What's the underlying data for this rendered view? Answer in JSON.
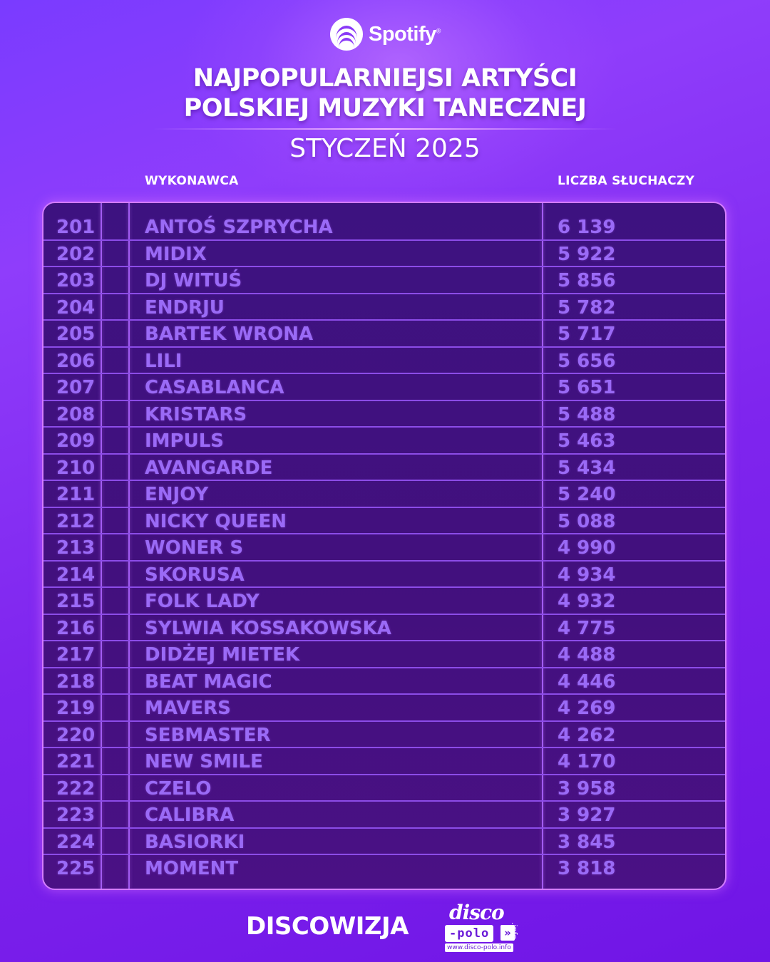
{
  "header": {
    "brand": "Spotify",
    "title_line1": "NAJPOPULARNIEJSI ARTYŚCI",
    "title_line2": "POLSKIEJ MUZYKI TANECZNEJ",
    "subtitle": "STYCZEŃ 2025"
  },
  "table": {
    "col_artist": "WYKONAWCA",
    "col_listeners": "LICZBA SŁUCHACZY",
    "rows": [
      {
        "rank": "201",
        "artist": "ANTOŚ SZPRYCHA",
        "listeners": "6 139"
      },
      {
        "rank": "202",
        "artist": "MIDIX",
        "listeners": "5 922"
      },
      {
        "rank": "203",
        "artist": "DJ WITUŚ",
        "listeners": "5 856"
      },
      {
        "rank": "204",
        "artist": "ENDRJU",
        "listeners": "5 782"
      },
      {
        "rank": "205",
        "artist": "BARTEK WRONA",
        "listeners": "5 717"
      },
      {
        "rank": "206",
        "artist": "LILI",
        "listeners": "5 656"
      },
      {
        "rank": "207",
        "artist": "CASABLANCA",
        "listeners": "5 651"
      },
      {
        "rank": "208",
        "artist": "KRISTARS",
        "listeners": "5 488"
      },
      {
        "rank": "209",
        "artist": "IMPULS",
        "listeners": "5 463"
      },
      {
        "rank": "210",
        "artist": "AVANGARDE",
        "listeners": "5 434"
      },
      {
        "rank": "211",
        "artist": "ENJOY",
        "listeners": "5 240"
      },
      {
        "rank": "212",
        "artist": "NICKY QUEEN",
        "listeners": "5 088"
      },
      {
        "rank": "213",
        "artist": "WONER S",
        "listeners": "4 990"
      },
      {
        "rank": "214",
        "artist": "SKORUSA",
        "listeners": "4 934"
      },
      {
        "rank": "215",
        "artist": "FOLK LADY",
        "listeners": "4 932"
      },
      {
        "rank": "216",
        "artist": "SYLWIA KOSSAKOWSKA",
        "listeners": "4 775"
      },
      {
        "rank": "217",
        "artist": "DIDŻEJ MIETEK",
        "listeners": "4 488"
      },
      {
        "rank": "218",
        "artist": "BEAT MAGIC",
        "listeners": "4 446"
      },
      {
        "rank": "219",
        "artist": "MAVERS",
        "listeners": "4 269"
      },
      {
        "rank": "220",
        "artist": "SEBMASTER",
        "listeners": "4 262"
      },
      {
        "rank": "221",
        "artist": "NEW SMILE",
        "listeners": "4 170"
      },
      {
        "rank": "222",
        "artist": "CZELO",
        "listeners": "3 958"
      },
      {
        "rank": "223",
        "artist": "CALIBRA",
        "listeners": "3 927"
      },
      {
        "rank": "224",
        "artist": "BASIORKI",
        "listeners": "3 845"
      },
      {
        "rank": "225",
        "artist": "MOMENT",
        "listeners": "3 818"
      }
    ]
  },
  "footer": {
    "left_brand": "DISCOWIZJA",
    "logo_disco": "disco",
    "logo_polo": "-polo",
    "logo_arrows": "»",
    "logo_info": ".info",
    "logo_url": "www.disco-polo.info"
  },
  "colors": {
    "background": "#7f25ee",
    "panel": "#43107e",
    "table_text": "#9a6af6",
    "panel_border": "#d47cff"
  }
}
